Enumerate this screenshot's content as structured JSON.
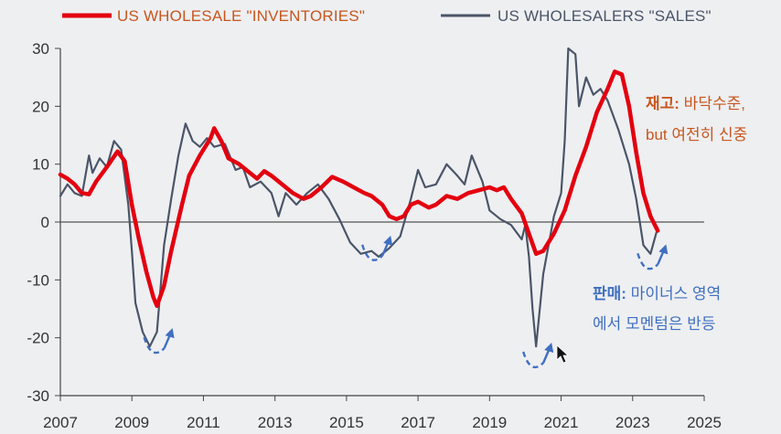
{
  "chart_data": {
    "type": "line",
    "title": "",
    "xlabel": "",
    "ylabel": "",
    "xlim": [
      2007,
      2025
    ],
    "ylim": [
      -30,
      30
    ],
    "xticks": [
      "2007",
      "2009",
      "2011",
      "2013",
      "2015",
      "2017",
      "2019",
      "2021",
      "2023",
      "2025"
    ],
    "yticks": [
      "30",
      "20",
      "10",
      "0",
      "-10",
      "-20",
      "-30"
    ],
    "legend_position": "top",
    "series": [
      {
        "name": "US WHOLESALE \"INVENTORIES\"",
        "color": "#e3000f",
        "points": [
          [
            2007.0,
            8.2
          ],
          [
            2007.2,
            7.5
          ],
          [
            2007.4,
            6.5
          ],
          [
            2007.6,
            5.0
          ],
          [
            2007.8,
            4.8
          ],
          [
            2008.0,
            7.0
          ],
          [
            2008.3,
            9.5
          ],
          [
            2008.6,
            12.2
          ],
          [
            2008.8,
            10.5
          ],
          [
            2009.0,
            3.0
          ],
          [
            2009.2,
            -3.0
          ],
          [
            2009.4,
            -8.5
          ],
          [
            2009.6,
            -13.0
          ],
          [
            2009.7,
            -14.5
          ],
          [
            2009.9,
            -11.0
          ],
          [
            2010.1,
            -5.0
          ],
          [
            2010.4,
            3.0
          ],
          [
            2010.6,
            8.0
          ],
          [
            2010.9,
            11.5
          ],
          [
            2011.2,
            14.5
          ],
          [
            2011.3,
            16.2
          ],
          [
            2011.5,
            14.0
          ],
          [
            2011.7,
            11.0
          ],
          [
            2012.0,
            10.0
          ],
          [
            2012.3,
            8.5
          ],
          [
            2012.5,
            7.5
          ],
          [
            2012.7,
            8.8
          ],
          [
            2012.9,
            8.0
          ],
          [
            2013.2,
            6.5
          ],
          [
            2013.5,
            5.0
          ],
          [
            2013.8,
            4.0
          ],
          [
            2014.0,
            4.5
          ],
          [
            2014.3,
            6.0
          ],
          [
            2014.6,
            7.8
          ],
          [
            2014.9,
            7.0
          ],
          [
            2015.2,
            6.0
          ],
          [
            2015.5,
            5.0
          ],
          [
            2015.7,
            4.5
          ],
          [
            2016.0,
            3.0
          ],
          [
            2016.2,
            1.0
          ],
          [
            2016.4,
            0.5
          ],
          [
            2016.6,
            1.0
          ],
          [
            2016.8,
            3.0
          ],
          [
            2017.0,
            3.5
          ],
          [
            2017.3,
            2.5
          ],
          [
            2017.5,
            3.0
          ],
          [
            2017.8,
            4.5
          ],
          [
            2018.1,
            4.0
          ],
          [
            2018.4,
            5.0
          ],
          [
            2018.7,
            5.5
          ],
          [
            2019.0,
            6.0
          ],
          [
            2019.2,
            5.5
          ],
          [
            2019.4,
            6.0
          ],
          [
            2019.6,
            4.0
          ],
          [
            2019.9,
            1.5
          ],
          [
            2020.1,
            -2.0
          ],
          [
            2020.3,
            -5.5
          ],
          [
            2020.5,
            -5.0
          ],
          [
            2020.8,
            -2.0
          ],
          [
            2021.1,
            2.0
          ],
          [
            2021.4,
            8.0
          ],
          [
            2021.7,
            13.0
          ],
          [
            2022.0,
            19.0
          ],
          [
            2022.3,
            23.0
          ],
          [
            2022.5,
            26.0
          ],
          [
            2022.7,
            25.5
          ],
          [
            2022.9,
            20.0
          ],
          [
            2023.1,
            12.0
          ],
          [
            2023.3,
            5.0
          ],
          [
            2023.5,
            1.0
          ],
          [
            2023.7,
            -1.5
          ]
        ]
      },
      {
        "name": "US WHOLESALERS \"SALES\"",
        "color": "#4a5568",
        "points": [
          [
            2007.0,
            4.5
          ],
          [
            2007.2,
            6.5
          ],
          [
            2007.4,
            5.0
          ],
          [
            2007.6,
            4.5
          ],
          [
            2007.8,
            11.5
          ],
          [
            2007.9,
            8.5
          ],
          [
            2008.1,
            11.0
          ],
          [
            2008.3,
            9.5
          ],
          [
            2008.5,
            14.0
          ],
          [
            2008.7,
            12.5
          ],
          [
            2008.9,
            3.0
          ],
          [
            2009.0,
            -5.0
          ],
          [
            2009.1,
            -14.0
          ],
          [
            2009.3,
            -19.0
          ],
          [
            2009.5,
            -21.5
          ],
          [
            2009.7,
            -19.0
          ],
          [
            2009.9,
            -4.0
          ],
          [
            2010.1,
            4.0
          ],
          [
            2010.3,
            11.5
          ],
          [
            2010.5,
            17.0
          ],
          [
            2010.7,
            14.0
          ],
          [
            2010.9,
            13.0
          ],
          [
            2011.1,
            14.5
          ],
          [
            2011.3,
            13.0
          ],
          [
            2011.6,
            13.5
          ],
          [
            2011.9,
            9.0
          ],
          [
            2012.1,
            9.5
          ],
          [
            2012.3,
            6.0
          ],
          [
            2012.6,
            7.0
          ],
          [
            2012.9,
            5.0
          ],
          [
            2013.1,
            1.0
          ],
          [
            2013.3,
            5.0
          ],
          [
            2013.6,
            3.0
          ],
          [
            2013.9,
            5.0
          ],
          [
            2014.2,
            6.5
          ],
          [
            2014.5,
            4.0
          ],
          [
            2014.8,
            0.5
          ],
          [
            2015.1,
            -3.5
          ],
          [
            2015.4,
            -5.5
          ],
          [
            2015.7,
            -5.0
          ],
          [
            2015.9,
            -6.0
          ],
          [
            2016.2,
            -4.5
          ],
          [
            2016.5,
            -2.5
          ],
          [
            2016.8,
            4.0
          ],
          [
            2017.0,
            9.0
          ],
          [
            2017.2,
            6.0
          ],
          [
            2017.5,
            6.5
          ],
          [
            2017.8,
            10.0
          ],
          [
            2018.1,
            8.0
          ],
          [
            2018.3,
            6.5
          ],
          [
            2018.5,
            11.5
          ],
          [
            2018.8,
            7.0
          ],
          [
            2019.0,
            2.0
          ],
          [
            2019.3,
            0.5
          ],
          [
            2019.6,
            -0.5
          ],
          [
            2019.9,
            -3.0
          ],
          [
            2020.0,
            -0.5
          ],
          [
            2020.1,
            -6.0
          ],
          [
            2020.2,
            -15.0
          ],
          [
            2020.3,
            -21.5
          ],
          [
            2020.5,
            -9.0
          ],
          [
            2020.8,
            1.0
          ],
          [
            2021.0,
            5.0
          ],
          [
            2021.1,
            14.0
          ],
          [
            2021.2,
            30.0
          ],
          [
            2021.4,
            29.0
          ],
          [
            2021.5,
            20.0
          ],
          [
            2021.7,
            25.0
          ],
          [
            2021.9,
            22.0
          ],
          [
            2022.1,
            23.0
          ],
          [
            2022.3,
            21.0
          ],
          [
            2022.6,
            16.0
          ],
          [
            2022.9,
            10.0
          ],
          [
            2023.1,
            4.0
          ],
          [
            2023.3,
            -4.0
          ],
          [
            2023.5,
            -5.5
          ],
          [
            2023.7,
            -1.0
          ]
        ]
      }
    ],
    "annotations": [
      {
        "bold": "재고:",
        "text": " 바닥수준,",
        "line2": "but 여전히 신중",
        "color": "#c8561e"
      },
      {
        "bold": "판매:",
        "text": " 마이너스 영역",
        "line2": "에서 모멘텀은 반등",
        "color": "#3f6fc1"
      }
    ],
    "trough_markers": [
      {
        "x": 2009.7,
        "y": -21.5
      },
      {
        "x": 2015.8,
        "y": -5.5
      },
      {
        "x": 2020.3,
        "y": -24.0
      },
      {
        "x": 2023.5,
        "y": -7.0
      }
    ],
    "colors": {
      "inventories": "#e3000f",
      "sales": "#4a5568",
      "marker": "#3f6fc1"
    }
  }
}
